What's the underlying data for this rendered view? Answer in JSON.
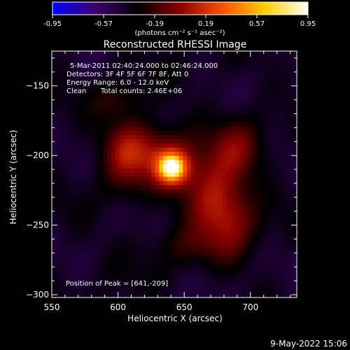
{
  "colorbar": {
    "ticks": [
      "-0.95",
      "-0.57",
      "-0.19",
      "0.19",
      "0.57",
      "0.95"
    ],
    "unit_label": "(photons cm⁻² s⁻¹ asec⁻²)",
    "colors": [
      "#0000ff",
      "#400070",
      "#000000",
      "#8a0000",
      "#ff5000",
      "#ffd000",
      "#ffffff"
    ]
  },
  "chart_data": {
    "type": "heatmap",
    "title": "Reconstructed RHESSI Image",
    "xlabel": "Heliocentric X (arcsec)",
    "ylabel": "Heliocentric Y (arcsec)",
    "xlim": [
      550,
      735
    ],
    "ylim": [
      -302,
      -125
    ],
    "xticks": [
      550,
      600,
      650,
      700
    ],
    "yticks": [
      -150,
      -200,
      -250,
      -300
    ],
    "color_range": [
      -0.95,
      0.95
    ],
    "peak": [
      641,
      -209
    ],
    "sources": [
      {
        "x": 641,
        "y": -209,
        "amp": 1.0,
        "sx": 9,
        "sy": 9
      },
      {
        "x": 625,
        "y": -196,
        "amp": 0.45,
        "sx": 20,
        "sy": 14
      },
      {
        "x": 668,
        "y": -225,
        "amp": 0.48,
        "sx": 15,
        "sy": 20
      },
      {
        "x": 685,
        "y": -245,
        "amp": 0.42,
        "sx": 14,
        "sy": 18
      },
      {
        "x": 690,
        "y": -195,
        "amp": 0.35,
        "sx": 13,
        "sy": 16
      },
      {
        "x": 605,
        "y": -200,
        "amp": 0.32,
        "sx": 12,
        "sy": 20
      },
      {
        "x": 600,
        "y": -160,
        "amp": 0.18,
        "sx": 12,
        "sy": 8
      },
      {
        "x": 650,
        "y": -265,
        "amp": 0.16,
        "sx": 22,
        "sy": 10
      }
    ],
    "annotations": {
      "time_range": "5-Mar-2011 02:40:24.000 to 02:46:24.000",
      "detectors": "Detectors: 3F 4F 5F 6F 7F 8F, Att 0",
      "energy": "Energy Range: 6.0 - 12.0 keV",
      "clean": "Clean",
      "counts": "Total counts: 2.46E+06",
      "peak_text": "Position of Peak = [641,-209]"
    }
  },
  "footer": {
    "date": "9-May-2022 15:06"
  }
}
